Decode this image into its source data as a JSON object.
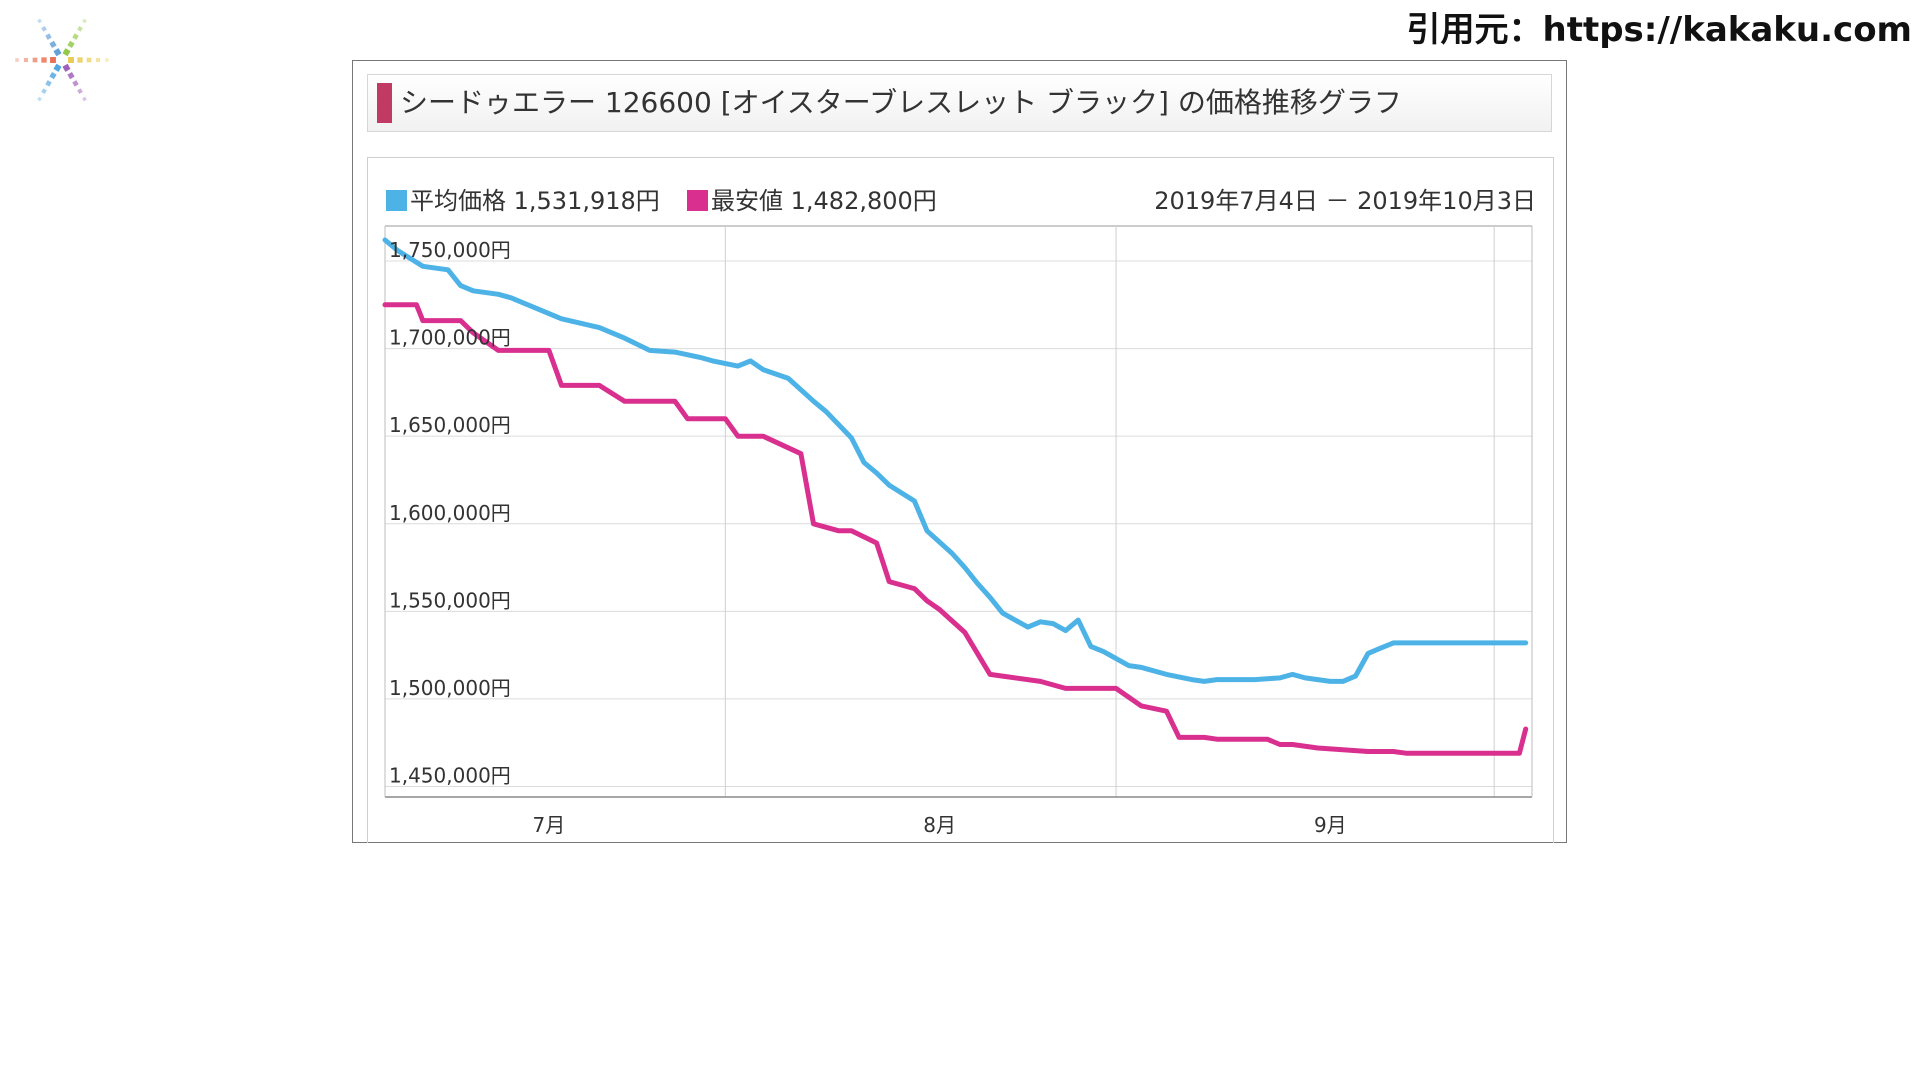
{
  "source_label": "引用元：https://kakaku.com",
  "logo": {
    "icon": "colorful-star-logo-icon",
    "colors": [
      "#8cc63f",
      "#5b9bd5",
      "#e7c94c",
      "#e8694a",
      "#9b59b6",
      "#4aa3df"
    ]
  },
  "chart_data": {
    "type": "line",
    "title": "シードゥエラー 126600 [オイスターブレスレット ブラック] の価格推移グラフ",
    "period": "2019年7月4日 － 2019年10月3日",
    "legend": [
      {
        "label": "平均価格",
        "value_text": "1,531,918円",
        "color": "#4db3e6"
      },
      {
        "label": "最安値",
        "value_text": "1,482,800円",
        "color": "#d9308f"
      }
    ],
    "month_labels": [
      "7月",
      "8月",
      "9月"
    ],
    "month_label_days": [
      13,
      44,
      75
    ],
    "month_boundaries": [
      27,
      58,
      88
    ],
    "ylim": [
      1444000,
      1770000
    ],
    "yticks": [
      1450000,
      1500000,
      1550000,
      1600000,
      1650000,
      1700000,
      1750000
    ],
    "ytick_labels": [
      "1,450,000円",
      "1,500,000円",
      "1,550,000円",
      "1,600,000円",
      "1,650,000円",
      "1,700,000円",
      "1,750,000円"
    ],
    "x_domain": [
      0,
      91
    ],
    "series": [
      {
        "name": "平均価格",
        "color": "#4db3e6",
        "x": [
          0,
          1,
          3,
          5,
          6,
          7,
          9,
          10,
          13,
          14,
          17,
          19,
          21,
          23,
          25,
          26,
          28,
          29,
          30,
          32,
          34,
          35,
          37,
          38,
          39,
          40,
          42,
          43,
          45,
          46,
          47,
          48,
          49,
          51,
          52,
          53,
          54,
          55,
          56,
          57,
          58,
          59,
          60,
          62,
          64,
          65,
          66,
          69,
          71,
          72,
          73,
          74,
          75,
          76,
          77,
          78,
          79,
          80,
          81,
          82,
          83,
          84,
          85,
          86,
          87,
          88,
          89,
          90.5
        ],
        "values": [
          1762000,
          1756000,
          1747000,
          1745000,
          1736000,
          1733000,
          1731000,
          1729000,
          1720000,
          1717000,
          1712000,
          1706000,
          1699000,
          1698000,
          1695000,
          1693000,
          1690000,
          1693000,
          1688000,
          1683000,
          1670000,
          1664000,
          1649000,
          1635000,
          1629000,
          1622000,
          1613000,
          1596000,
          1583000,
          1575000,
          1566000,
          1558000,
          1549000,
          1541000,
          1544000,
          1543000,
          1539000,
          1545000,
          1530000,
          1527000,
          1523000,
          1519000,
          1518000,
          1514000,
          1511000,
          1510000,
          1511000,
          1511000,
          1512000,
          1514000,
          1512000,
          1511000,
          1510000,
          1510000,
          1513000,
          1526000,
          1529000,
          1532000,
          1532000,
          1532000,
          1532000,
          1532000,
          1532000,
          1532000,
          1532000,
          1532000,
          1532000,
          1532000
        ]
      },
      {
        "name": "最安値",
        "color": "#d9308f",
        "x": [
          0,
          2.5,
          3,
          6,
          7,
          9,
          13,
          14,
          17,
          19,
          23,
          24,
          27,
          28,
          30,
          33,
          34,
          36,
          37,
          39,
          40,
          42,
          43,
          44,
          46,
          48,
          49,
          52,
          54,
          58,
          60,
          62,
          63,
          65,
          66,
          70,
          71,
          72,
          74,
          78,
          80,
          81,
          82,
          83,
          84,
          85,
          86,
          87,
          88,
          89,
          90,
          90.5
        ],
        "values": [
          1725000,
          1725000,
          1716000,
          1716000,
          1709000,
          1699000,
          1699000,
          1679000,
          1679000,
          1670000,
          1670000,
          1660000,
          1660000,
          1650000,
          1650000,
          1640000,
          1600000,
          1596000,
          1596000,
          1589000,
          1567000,
          1563000,
          1556000,
          1551000,
          1538000,
          1514000,
          1513000,
          1510000,
          1506000,
          1506000,
          1496000,
          1493000,
          1478000,
          1478000,
          1477000,
          1477000,
          1474000,
          1474000,
          1472000,
          1470000,
          1470000,
          1469000,
          1469000,
          1469000,
          1469000,
          1469000,
          1469000,
          1469000,
          1469000,
          1469000,
          1469000,
          1482800
        ]
      }
    ]
  }
}
